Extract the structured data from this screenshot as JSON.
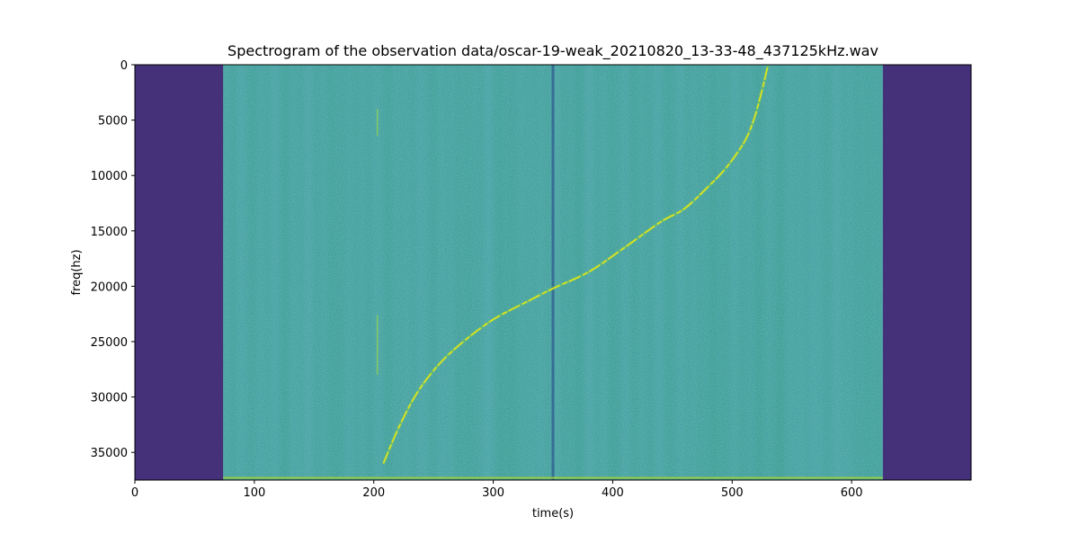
{
  "chart_data": {
    "type": "heatmap",
    "title": "Spectrogram of the observation data/oscar-19-weak_20210820_13-33-48_437125kHz.wav",
    "xlabel": "time(s)",
    "ylabel": "freq(hz)",
    "xlim": [
      0,
      700
    ],
    "ylim": [
      37500,
      0
    ],
    "y_inverted": true,
    "x_ticks": [
      0,
      100,
      200,
      300,
      400,
      500,
      600
    ],
    "x_tick_labels": [
      "0",
      "100",
      "200",
      "300",
      "400",
      "500",
      "600"
    ],
    "y_ticks": [
      0,
      5000,
      10000,
      15000,
      20000,
      25000,
      30000,
      35000
    ],
    "y_tick_labels": [
      "0",
      "5000",
      "10000",
      "15000",
      "20000",
      "25000",
      "30000",
      "35000"
    ],
    "colormap": "viridis",
    "colors": {
      "no_data": "#45307a",
      "noise": "#2a8a8a",
      "signal": "#e6e617",
      "dip_line": "#2f5f8e"
    },
    "no_data_regions": [
      [
        0,
        74
      ],
      [
        626,
        700
      ]
    ],
    "recording_range": [
      74,
      626
    ],
    "vertical_dip_line_time": 350,
    "signal_trace": {
      "time": [
        208,
        222,
        237,
        255,
        275,
        300,
        330,
        350,
        380,
        410,
        440,
        460,
        480,
        495,
        510,
        518,
        525,
        530
      ],
      "freq": [
        36000,
        32500,
        29500,
        27000,
        25000,
        23000,
        21300,
        20200,
        18700,
        16500,
        14200,
        13000,
        11000,
        9300,
        7000,
        5000,
        2300,
        0
      ]
    },
    "short_vertical_trace": {
      "time": 203,
      "freq_segments": [
        [
          4000,
          6400
        ],
        [
          22600,
          28000
        ]
      ]
    },
    "bottom_band_freq": 37300
  }
}
